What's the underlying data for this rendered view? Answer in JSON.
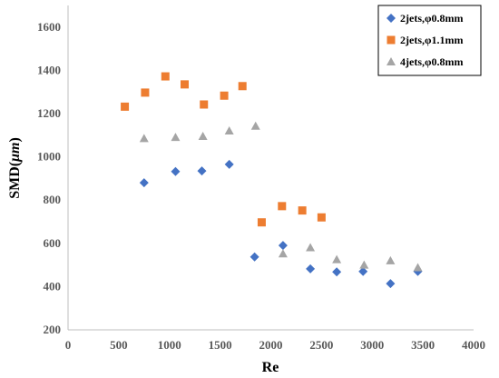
{
  "chart_data": {
    "type": "scatter",
    "title": "",
    "xlabel": "Re",
    "ylabel_main": "SMD(",
    "ylabel_unit": "μm",
    "ylabel_close": ")",
    "xlim": [
      0,
      4000
    ],
    "ylim": [
      200,
      1700
    ],
    "xticks": [
      0,
      500,
      1000,
      1500,
      2000,
      2500,
      3000,
      3500,
      4000
    ],
    "yticks": [
      200,
      400,
      600,
      800,
      1000,
      1200,
      1400,
      1600
    ],
    "grid": false,
    "legend_position": "top-right",
    "series": [
      {
        "name": "2jets,φ0.8mm",
        "marker": "diamond",
        "color": "#4472C4",
        "points": [
          [
            750,
            880
          ],
          [
            1060,
            932
          ],
          [
            1320,
            935
          ],
          [
            1590,
            965
          ],
          [
            1840,
            537
          ],
          [
            2120,
            590
          ],
          [
            2390,
            482
          ],
          [
            2650,
            468
          ],
          [
            2910,
            470
          ],
          [
            3180,
            414
          ],
          [
            3450,
            470
          ]
        ]
      },
      {
        "name": "2jets,φ1.1mm",
        "marker": "square",
        "color": "#ED7D31",
        "points": [
          [
            560,
            1232
          ],
          [
            760,
            1297
          ],
          [
            960,
            1372
          ],
          [
            1150,
            1335
          ],
          [
            1340,
            1242
          ],
          [
            1540,
            1283
          ],
          [
            1720,
            1327
          ],
          [
            1910,
            697
          ],
          [
            2110,
            772
          ],
          [
            2310,
            752
          ],
          [
            2500,
            720
          ]
        ]
      },
      {
        "name": "4jets,φ0.8mm",
        "marker": "triangle",
        "color": "#A5A5A5",
        "points": [
          [
            750,
            1085
          ],
          [
            1060,
            1090
          ],
          [
            1330,
            1095
          ],
          [
            1590,
            1120
          ],
          [
            1850,
            1142
          ],
          [
            2120,
            552
          ],
          [
            2390,
            580
          ],
          [
            2650,
            525
          ],
          [
            2920,
            500
          ],
          [
            3180,
            520
          ],
          [
            3450,
            488
          ]
        ]
      }
    ]
  }
}
